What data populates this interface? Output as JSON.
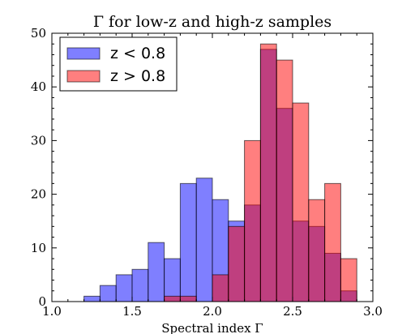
{
  "chart_data": {
    "type": "bar",
    "title": "Γ for low-z and high-z samples",
    "xlabel": "Spectral index Γ",
    "ylabel": "",
    "xlim": [
      1.0,
      3.0
    ],
    "ylim": [
      0,
      50
    ],
    "xticks": [
      "1.0",
      "1.5",
      "2.0",
      "2.5",
      "3.0"
    ],
    "yticks": [
      "0",
      "10",
      "20",
      "30",
      "40",
      "50"
    ],
    "grid": false,
    "legend_position": "top-left",
    "bin_edges": [
      1.2,
      1.3,
      1.4,
      1.5,
      1.6,
      1.7,
      1.8,
      1.9,
      2.0,
      2.1,
      2.2,
      2.3,
      2.4,
      2.5,
      2.6,
      2.7,
      2.8,
      2.9
    ],
    "series": [
      {
        "name": "z < 0.8",
        "color": "#0000ff",
        "opacity": 0.5,
        "values": [
          1,
          3,
          5,
          6,
          11,
          8,
          22,
          23,
          19,
          15,
          18,
          47,
          36,
          15,
          14,
          9,
          2
        ]
      },
      {
        "name": "z > 0.8",
        "color": "#ff0000",
        "opacity": 0.5,
        "values": [
          0,
          0,
          0,
          0,
          0,
          1,
          1,
          0,
          5,
          14,
          30,
          48,
          45,
          37,
          19,
          22,
          8
        ]
      }
    ]
  }
}
